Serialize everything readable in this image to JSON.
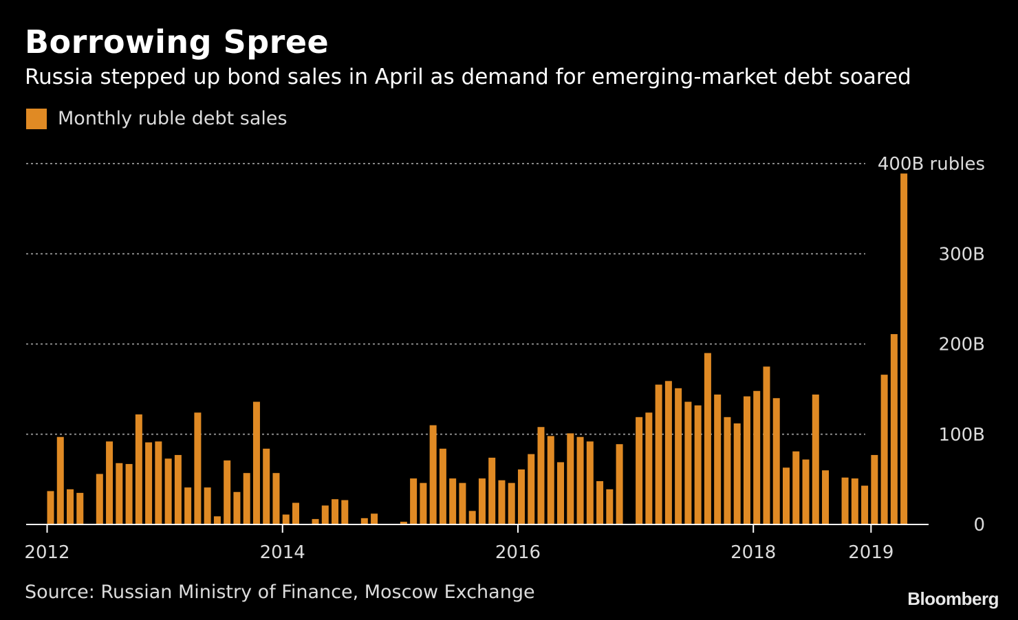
{
  "header": {
    "title": "Borrowing Spree",
    "subtitle": "Russia stepped up bond sales in April as demand for emerging-market debt soared"
  },
  "legend": {
    "label": "Monthly ruble debt sales",
    "color": "#e08a24"
  },
  "footer": {
    "source": "Source: Russian Ministry of Finance, Moscow Exchange",
    "brand": "Bloomberg"
  },
  "colors": {
    "background": "#000000",
    "bar": "#e08a24",
    "grid": "#8a8a8a",
    "axis": "#ffffff",
    "text": "#dcdcdc"
  },
  "chart_data": {
    "type": "bar",
    "title": "Borrowing Spree",
    "series_name": "Monthly ruble debt sales",
    "unit_label": "B rubles",
    "ylim": [
      0,
      400
    ],
    "y_ticks": [
      {
        "value": 0,
        "label": "0"
      },
      {
        "value": 100,
        "label": "100B"
      },
      {
        "value": 200,
        "label": "200B"
      },
      {
        "value": 300,
        "label": "300B"
      },
      {
        "value": 400,
        "label": "400B rubles"
      }
    ],
    "x_ticks": [
      {
        "index": 0,
        "label": "2012"
      },
      {
        "index": 24,
        "label": "2014"
      },
      {
        "index": 48,
        "label": "2016"
      },
      {
        "index": 72,
        "label": "2018"
      },
      {
        "index": 84,
        "label": "2019"
      }
    ],
    "start_month": "2012-01",
    "end_month": "2019-04",
    "values": [
      37,
      97,
      39,
      35,
      0,
      56,
      92,
      68,
      67,
      122,
      91,
      92,
      73,
      77,
      41,
      124,
      41,
      9,
      71,
      36,
      57,
      136,
      84,
      57,
      11,
      24,
      0,
      6,
      21,
      28,
      27,
      0,
      7,
      12,
      0,
      0,
      3,
      51,
      46,
      110,
      84,
      51,
      46,
      15,
      51,
      74,
      49,
      46,
      61,
      78,
      108,
      98,
      69,
      101,
      97,
      92,
      48,
      39,
      89,
      0,
      119,
      124,
      155,
      159,
      151,
      136,
      132,
      190,
      144,
      119,
      112,
      142,
      148,
      175,
      140,
      63,
      81,
      72,
      144,
      60,
      0,
      52,
      51,
      43,
      77,
      166,
      211,
      389
    ],
    "grid": true
  }
}
